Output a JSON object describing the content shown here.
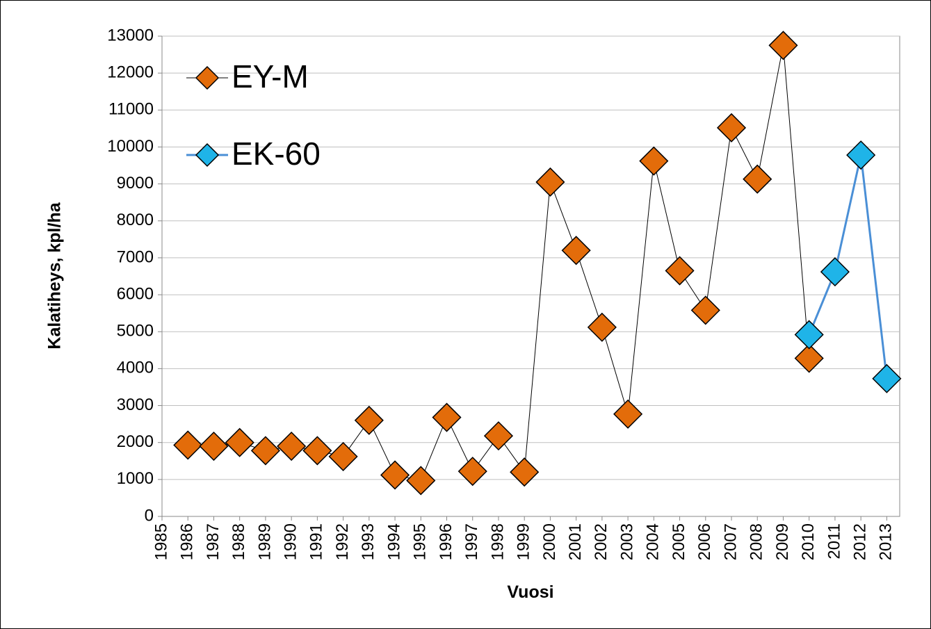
{
  "chart_data": {
    "type": "line",
    "xlabel": "Vuosi",
    "ylabel": "Kalatiheys, kpl/ha",
    "xlim": [
      1985,
      2013.5
    ],
    "xticks": [
      1985,
      1986,
      1987,
      1988,
      1989,
      1990,
      1991,
      1992,
      1993,
      1994,
      1995,
      1996,
      1997,
      1998,
      1999,
      2000,
      2001,
      2002,
      2003,
      2004,
      2005,
      2006,
      2007,
      2008,
      2009,
      2010,
      2011,
      2012,
      2013
    ],
    "ylim": [
      0,
      13000
    ],
    "yticks": [
      0,
      1000,
      2000,
      3000,
      4000,
      5000,
      6000,
      7000,
      8000,
      9000,
      10000,
      11000,
      12000,
      13000
    ],
    "grid": true,
    "legend": "upper left",
    "series": [
      {
        "name": "EY-M",
        "color": "#e36c0a",
        "line_color": "#000000",
        "line_width": 1,
        "x": [
          1986,
          1987,
          1988,
          1989,
          1990,
          1991,
          1992,
          1993,
          1994,
          1995,
          1996,
          1997,
          1998,
          1999,
          2000,
          2001,
          2002,
          2003,
          2004,
          2005,
          2006,
          2007,
          2008,
          2009,
          2010
        ],
        "values": [
          1930,
          1900,
          2000,
          1780,
          1900,
          1780,
          1620,
          2600,
          1120,
          970,
          2680,
          1220,
          2180,
          1200,
          9050,
          7200,
          5120,
          2770,
          9620,
          6650,
          5580,
          10520,
          9130,
          12750,
          4280
        ]
      },
      {
        "name": "EK-60",
        "color": "#1fb4e8",
        "line_color": "#4a8fd6",
        "line_width": 3,
        "x": [
          2010,
          2011,
          2012,
          2013
        ],
        "values": [
          4920,
          6620,
          9780,
          3730
        ]
      }
    ]
  }
}
